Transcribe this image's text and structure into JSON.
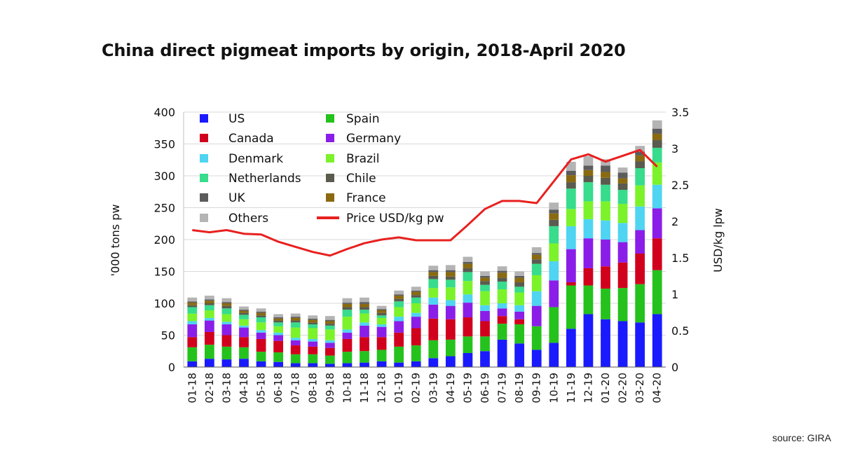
{
  "title": "China direct pigmeat imports by origin, 2018-April 2020",
  "source": "source: GIRA",
  "chart_data": {
    "type": "bar",
    "stacked": true,
    "categories": [
      "01-18",
      "02-18",
      "03-18",
      "04-18",
      "05-18",
      "06-18",
      "07-18",
      "08-18",
      "09-18",
      "10-18",
      "11-18",
      "12-18",
      "01-19",
      "02-19",
      "03-19",
      "04-19",
      "05-19",
      "06-19",
      "07-19",
      "08-19",
      "09-19",
      "10-19",
      "11-19",
      "12-19",
      "01-20",
      "02-20",
      "03-20",
      "04-20"
    ],
    "ylabel": "'000 tons pw",
    "ylabel2": "USD/kg lpw",
    "ylim": [
      0,
      400
    ],
    "y2lim": [
      0,
      3.5
    ],
    "yticks": [
      "0",
      "50",
      "100",
      "150",
      "200",
      "250",
      "300",
      "350",
      "400"
    ],
    "y2ticks": [
      "0",
      "0.5",
      "1",
      "1.5",
      "2",
      "2.5",
      "3",
      "3.5"
    ],
    "grid": true,
    "legend_position": "top-left (inside)",
    "series": [
      {
        "name": "US",
        "color": "#1a1aff",
        "values": [
          9,
          13,
          12,
          13,
          9,
          8,
          6,
          6,
          5,
          6,
          7,
          9,
          7,
          9,
          14,
          17,
          22,
          25,
          43,
          37,
          27,
          38,
          60,
          83,
          75,
          72,
          70,
          83
        ]
      },
      {
        "name": "Spain",
        "color": "#25c21d",
        "values": [
          22,
          22,
          20,
          18,
          15,
          15,
          14,
          14,
          13,
          18,
          18,
          18,
          25,
          25,
          28,
          26,
          26,
          23,
          25,
          30,
          37,
          56,
          68,
          45,
          48,
          52,
          60,
          69
        ]
      },
      {
        "name": "Canada",
        "color": "#d1001c",
        "values": [
          16,
          20,
          18,
          16,
          20,
          18,
          14,
          12,
          12,
          20,
          22,
          20,
          22,
          27,
          34,
          32,
          30,
          24,
          12,
          8,
          0,
          0,
          5,
          27,
          35,
          40,
          48,
          50
        ]
      },
      {
        "name": "Germany",
        "color": "#8a1ee8",
        "values": [
          20,
          18,
          17,
          15,
          10,
          9,
          8,
          8,
          8,
          10,
          18,
          16,
          18,
          18,
          22,
          21,
          23,
          16,
          12,
          12,
          32,
          42,
          52,
          47,
          42,
          32,
          37,
          47
        ]
      },
      {
        "name": "Denmark",
        "color": "#4fd4f2",
        "values": [
          5,
          4,
          4,
          3,
          4,
          4,
          4,
          4,
          4,
          5,
          5,
          4,
          7,
          6,
          11,
          9,
          13,
          9,
          8,
          10,
          23,
          30,
          36,
          30,
          30,
          30,
          37,
          37
        ]
      },
      {
        "name": "Brazil",
        "color": "#7cf22a",
        "values": [
          12,
          12,
          12,
          10,
          12,
          10,
          16,
          17,
          17,
          20,
          14,
          10,
          15,
          15,
          15,
          20,
          21,
          22,
          22,
          20,
          25,
          28,
          27,
          28,
          30,
          30,
          33,
          35
        ]
      },
      {
        "name": "Netherlands",
        "color": "#37dc8c",
        "values": [
          10,
          8,
          9,
          7,
          8,
          6,
          8,
          6,
          6,
          11,
          6,
          4,
          9,
          9,
          14,
          12,
          14,
          10,
          12,
          9,
          18,
          27,
          32,
          30,
          26,
          22,
          27,
          23
        ]
      },
      {
        "name": "Chile",
        "color": "#5a5a4e",
        "values": [
          3,
          3,
          4,
          3,
          3,
          3,
          3,
          3,
          3,
          4,
          4,
          4,
          4,
          4,
          5,
          5,
          6,
          6,
          6,
          7,
          7,
          10,
          10,
          10,
          11,
          10,
          11,
          12
        ]
      },
      {
        "name": "France",
        "color": "#8a6a10",
        "values": [
          4,
          4,
          4,
          3,
          4,
          3,
          4,
          4,
          4,
          5,
          5,
          4,
          5,
          5,
          6,
          7,
          7,
          5,
          8,
          7,
          7,
          10,
          11,
          9,
          9,
          8,
          9,
          10
        ]
      },
      {
        "name": "UK",
        "color": "#5c5c5c",
        "values": [
          2,
          2,
          2,
          2,
          2,
          2,
          2,
          2,
          2,
          2,
          3,
          2,
          2,
          2,
          3,
          3,
          3,
          3,
          3,
          3,
          3,
          6,
          7,
          7,
          10,
          9,
          6,
          8
        ]
      },
      {
        "name": "Others",
        "color": "#b4b4b4",
        "values": [
          6,
          6,
          6,
          5,
          5,
          5,
          5,
          5,
          6,
          7,
          7,
          5,
          6,
          6,
          7,
          8,
          8,
          7,
          7,
          7,
          9,
          11,
          14,
          15,
          10,
          8,
          9,
          13
        ]
      }
    ],
    "line": {
      "name": "Price USD/kg pw",
      "color": "#e8201f",
      "values": [
        1.88,
        1.85,
        1.88,
        1.83,
        1.82,
        1.72,
        1.65,
        1.58,
        1.53,
        1.62,
        1.7,
        1.75,
        1.78,
        1.74,
        1.74,
        1.74,
        1.95,
        2.17,
        2.28,
        2.28,
        2.25,
        2.55,
        2.85,
        2.92,
        2.82,
        2.9,
        2.98,
        2.75
      ]
    },
    "legend": {
      "left": [
        "US",
        "Canada",
        "Denmark",
        "Netherlands",
        "UK",
        "Others"
      ],
      "right": [
        "Spain",
        "Germany",
        "Brazil",
        "Chile",
        "France",
        "Price USD/kg pw"
      ]
    }
  }
}
